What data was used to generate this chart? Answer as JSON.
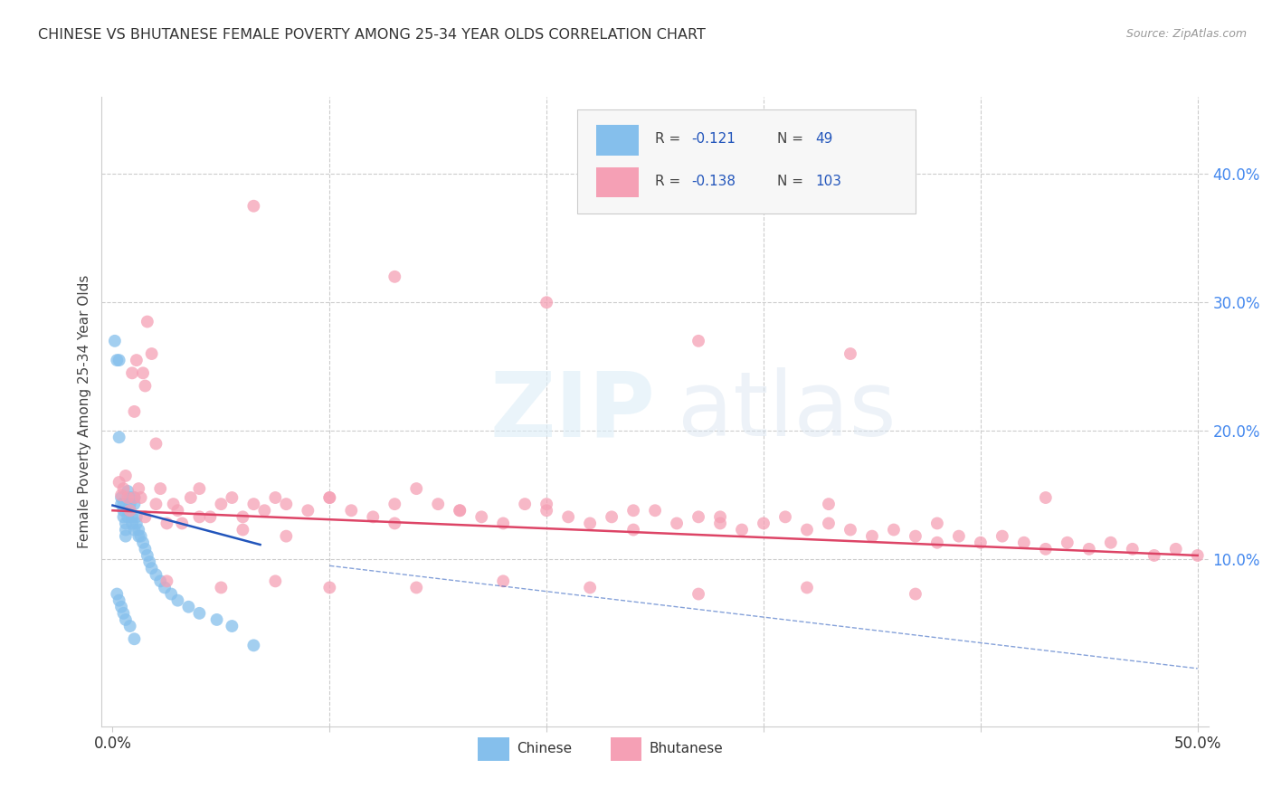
{
  "title": "CHINESE VS BHUTANESE FEMALE POVERTY AMONG 25-34 YEAR OLDS CORRELATION CHART",
  "source": "Source: ZipAtlas.com",
  "ylabel": "Female Poverty Among 25-34 Year Olds",
  "chinese_color": "#85BFEC",
  "bhutanese_color": "#F5A0B5",
  "trend_chinese_color": "#2255BB",
  "trend_bhutanese_color": "#DD4466",
  "chinese_r": -0.121,
  "chinese_n": 49,
  "bhutanese_r": -0.138,
  "bhutanese_n": 103,
  "xlim": [
    -0.005,
    0.505
  ],
  "ylim": [
    -0.03,
    0.46
  ],
  "xticks": [
    0.0,
    0.1,
    0.2,
    0.3,
    0.4,
    0.5
  ],
  "xtick_labels": [
    "0.0%",
    "",
    "",
    "",
    "",
    "50.0%"
  ],
  "yticks": [
    0.0,
    0.1,
    0.2,
    0.3,
    0.4
  ],
  "ytick_labels": [
    "",
    "10.0%",
    "20.0%",
    "30.0%",
    "40.0%"
  ],
  "chinese_x": [
    0.001,
    0.002,
    0.003,
    0.003,
    0.004,
    0.004,
    0.005,
    0.005,
    0.005,
    0.006,
    0.006,
    0.006,
    0.007,
    0.007,
    0.008,
    0.008,
    0.008,
    0.009,
    0.009,
    0.01,
    0.01,
    0.01,
    0.011,
    0.011,
    0.012,
    0.012,
    0.013,
    0.014,
    0.015,
    0.016,
    0.017,
    0.018,
    0.02,
    0.022,
    0.024,
    0.027,
    0.03,
    0.035,
    0.04,
    0.048,
    0.055,
    0.065,
    0.002,
    0.003,
    0.004,
    0.005,
    0.006,
    0.008,
    0.01
  ],
  "chinese_y": [
    0.27,
    0.255,
    0.255,
    0.195,
    0.148,
    0.143,
    0.143,
    0.138,
    0.133,
    0.128,
    0.123,
    0.118,
    0.153,
    0.133,
    0.148,
    0.143,
    0.138,
    0.133,
    0.128,
    0.148,
    0.143,
    0.123,
    0.133,
    0.128,
    0.123,
    0.118,
    0.118,
    0.113,
    0.108,
    0.103,
    0.098,
    0.093,
    0.088,
    0.083,
    0.078,
    0.073,
    0.068,
    0.063,
    0.058,
    0.053,
    0.048,
    0.033,
    0.073,
    0.068,
    0.063,
    0.058,
    0.053,
    0.048,
    0.038
  ],
  "bhutanese_x": [
    0.003,
    0.004,
    0.005,
    0.006,
    0.007,
    0.008,
    0.009,
    0.01,
    0.011,
    0.012,
    0.013,
    0.014,
    0.015,
    0.016,
    0.018,
    0.02,
    0.022,
    0.025,
    0.028,
    0.032,
    0.036,
    0.04,
    0.045,
    0.05,
    0.055,
    0.06,
    0.065,
    0.07,
    0.075,
    0.08,
    0.09,
    0.1,
    0.11,
    0.12,
    0.13,
    0.14,
    0.15,
    0.16,
    0.17,
    0.18,
    0.19,
    0.2,
    0.21,
    0.22,
    0.23,
    0.24,
    0.25,
    0.26,
    0.27,
    0.28,
    0.29,
    0.3,
    0.31,
    0.32,
    0.33,
    0.34,
    0.35,
    0.36,
    0.37,
    0.38,
    0.39,
    0.4,
    0.41,
    0.42,
    0.43,
    0.44,
    0.45,
    0.46,
    0.47,
    0.48,
    0.49,
    0.5,
    0.065,
    0.13,
    0.2,
    0.27,
    0.34,
    0.01,
    0.015,
    0.02,
    0.03,
    0.04,
    0.06,
    0.08,
    0.1,
    0.13,
    0.16,
    0.2,
    0.24,
    0.28,
    0.33,
    0.38,
    0.43,
    0.025,
    0.05,
    0.075,
    0.1,
    0.14,
    0.18,
    0.22,
    0.27,
    0.32,
    0.37
  ],
  "bhutanese_y": [
    0.16,
    0.15,
    0.155,
    0.165,
    0.148,
    0.138,
    0.245,
    0.215,
    0.255,
    0.155,
    0.148,
    0.245,
    0.235,
    0.285,
    0.26,
    0.19,
    0.155,
    0.128,
    0.143,
    0.128,
    0.148,
    0.155,
    0.133,
    0.143,
    0.148,
    0.133,
    0.143,
    0.138,
    0.148,
    0.143,
    0.138,
    0.148,
    0.138,
    0.133,
    0.128,
    0.155,
    0.143,
    0.138,
    0.133,
    0.128,
    0.143,
    0.138,
    0.133,
    0.128,
    0.133,
    0.123,
    0.138,
    0.128,
    0.133,
    0.128,
    0.123,
    0.128,
    0.133,
    0.123,
    0.128,
    0.123,
    0.118,
    0.123,
    0.118,
    0.113,
    0.118,
    0.113,
    0.118,
    0.113,
    0.108,
    0.113,
    0.108,
    0.113,
    0.108,
    0.103,
    0.108,
    0.103,
    0.375,
    0.32,
    0.3,
    0.27,
    0.26,
    0.148,
    0.133,
    0.143,
    0.138,
    0.133,
    0.123,
    0.118,
    0.148,
    0.143,
    0.138,
    0.143,
    0.138,
    0.133,
    0.143,
    0.128,
    0.148,
    0.083,
    0.078,
    0.083,
    0.078,
    0.078,
    0.083,
    0.078,
    0.073,
    0.078,
    0.073
  ]
}
